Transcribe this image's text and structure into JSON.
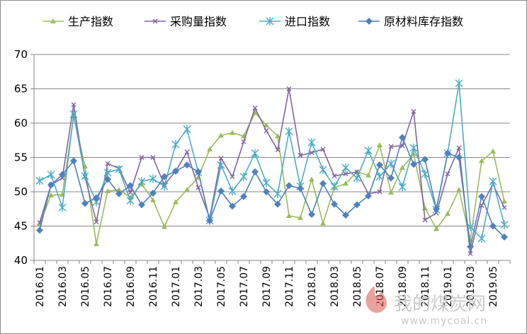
{
  "chart_data": {
    "type": "line",
    "title": "",
    "xlabel": "",
    "ylabel": "",
    "ylim": [
      40,
      70
    ],
    "yticks": [
      40,
      45,
      50,
      55,
      60,
      65,
      70
    ],
    "grid": "horizontal",
    "legend_position": "top",
    "x": [
      "2016.01",
      "2016.02",
      "2016.03",
      "2016.04",
      "2016.05",
      "2016.06",
      "2016.07",
      "2016.08",
      "2016.09",
      "2016.10",
      "2016.11",
      "2016.12",
      "2017.01",
      "2017.02",
      "2017.03",
      "2017.04",
      "2017.05",
      "2017.06",
      "2017.07",
      "2017.08",
      "2017.09",
      "2017.10",
      "2017.11",
      "2017.12",
      "2018.01",
      "2018.02",
      "2018.03",
      "2018.04",
      "2018.05",
      "2018.06",
      "2018.07",
      "2018.08",
      "2018.09",
      "2018.10",
      "2018.11",
      "2018.12",
      "2019.01",
      "2019.02",
      "2019.03",
      "2019.04",
      "2019.05",
      "2019.06"
    ],
    "xtick_labels": [
      "2016.01",
      "2016.03",
      "2016.05",
      "2016.07",
      "2016.09",
      "2016.11",
      "2017.01",
      "2017.03",
      "2017.05",
      "2017.07",
      "2017.09",
      "2017.11",
      "2018.01",
      "2018.03",
      "2018.05",
      "2018.07",
      "2018.09",
      "2018.11",
      "2019.01",
      "2019.03",
      "2019.05"
    ],
    "series": [
      {
        "name": "生产指数",
        "color": "#9bbb59",
        "marker": "triangle",
        "values": [
          45.3,
          49.5,
          49.6,
          61.0,
          53.7,
          42.4,
          50.1,
          50.3,
          49.2,
          51.1,
          48.8,
          44.9,
          48.5,
          50.3,
          52.1,
          56.2,
          58.2,
          58.6,
          58.1,
          61.5,
          59.7,
          58.1,
          46.5,
          46.2,
          51.8,
          45.4,
          50.6,
          51.2,
          52.9,
          52.4,
          56.8,
          49.9,
          53.5,
          55.5,
          47.6,
          44.6,
          46.8,
          50.3,
          43.0,
          54.5,
          55.9,
          48.6
        ]
      },
      {
        "name": "采购量指数",
        "color": "#8064a2",
        "marker": "x",
        "values": [
          45.5,
          51.0,
          52.0,
          62.7,
          52.2,
          45.6,
          54.1,
          53.4,
          49.9,
          55.0,
          55.0,
          51.0,
          53.0,
          55.8,
          50.6,
          46.2,
          54.9,
          52.2,
          57.3,
          62.2,
          58.9,
          56.1,
          65.0,
          55.3,
          55.7,
          56.2,
          52.3,
          52.6,
          52.9,
          49.7,
          50.0,
          56.6,
          56.7,
          61.7,
          45.9,
          46.9,
          52.6,
          56.4,
          41.0,
          48.0,
          51.1,
          47.7
        ]
      },
      {
        "name": "进口指数",
        "color": "#4bacc6",
        "marker": "asterisk",
        "values": [
          51.6,
          52.5,
          47.7,
          61.3,
          52.3,
          48.5,
          52.8,
          53.3,
          48.7,
          51.5,
          51.9,
          50.8,
          56.9,
          59.1,
          52.8,
          45.8,
          53.9,
          50.1,
          52.2,
          55.6,
          51.3,
          49.7,
          58.8,
          50.8,
          57.2,
          53.2,
          50.8,
          53.5,
          52.0,
          56.0,
          52.2,
          54.1,
          50.7,
          56.4,
          52.6,
          47.4,
          55.6,
          65.8,
          44.9,
          43.2,
          51.5,
          45.2
        ]
      },
      {
        "name": "原材料库存指数",
        "color": "#4f81bd",
        "marker": "diamond",
        "values": [
          44.4,
          51.0,
          52.5,
          54.5,
          48.3,
          49.1,
          51.8,
          49.7,
          50.9,
          48.1,
          49.8,
          52.2,
          53.0,
          53.9,
          52.9,
          45.8,
          50.1,
          47.9,
          49.3,
          52.9,
          50.0,
          48.2,
          50.9,
          50.5,
          46.7,
          51.2,
          48.2,
          46.6,
          48.1,
          49.4,
          53.9,
          52.0,
          57.9,
          54.0,
          54.7,
          47.5,
          55.6,
          55.0,
          42.0,
          49.3,
          45.0,
          43.4
        ]
      }
    ]
  },
  "watermark": {
    "text": "我的煤炭网",
    "url": "www.mycoal.cn"
  }
}
